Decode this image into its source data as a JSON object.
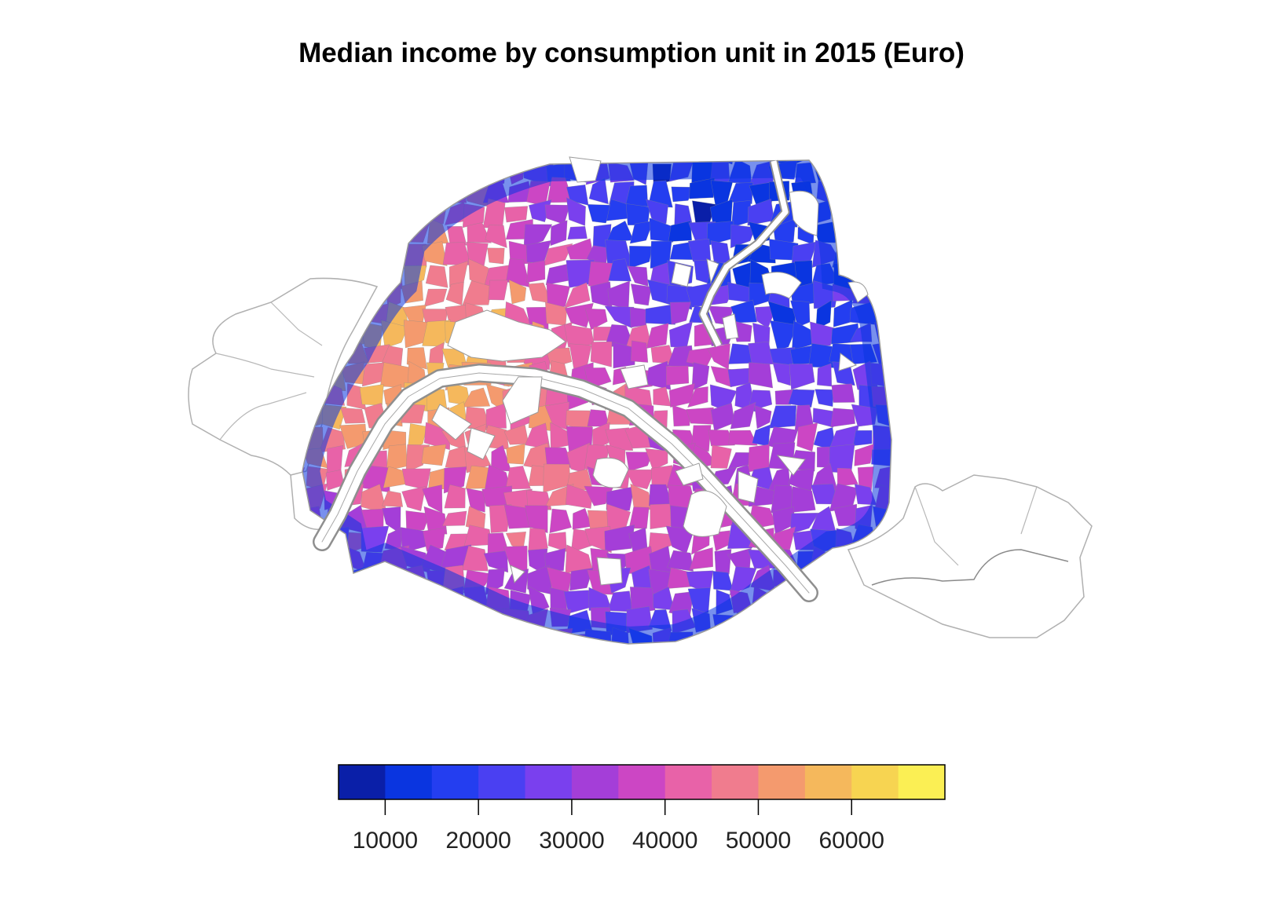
{
  "title": "Median income by consumption unit in 2015 (Euro)",
  "legend": {
    "breaks": [
      5000,
      10000,
      15000,
      20000,
      25000,
      30000,
      35000,
      40000,
      45000,
      50000,
      55000,
      60000,
      65000,
      70000
    ],
    "colors": [
      "#0a1fa8",
      "#0a35e0",
      "#243ef0",
      "#4a40f2",
      "#7a40ee",
      "#a43ed8",
      "#cc46c4",
      "#e862a8",
      "#f07c8e",
      "#f49a6e",
      "#f5b85c",
      "#f7d451",
      "#fbef54"
    ],
    "tick_values": [
      10000,
      20000,
      30000,
      40000,
      50000,
      60000
    ],
    "tick_labels": [
      "10000",
      "20000",
      "30000",
      "40000",
      "50000",
      "60000"
    ]
  },
  "map": {
    "subject": "Paris IRIS districts",
    "boundary_color": "#888888",
    "missing_color": "#ffffff"
  }
}
